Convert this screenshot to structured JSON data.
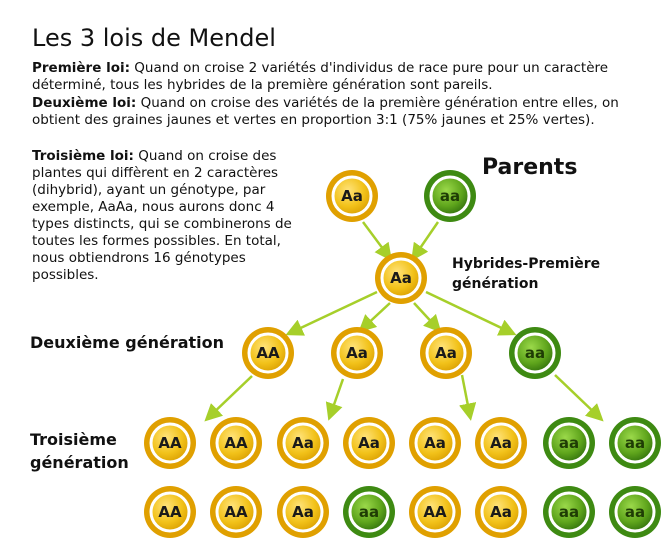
{
  "title": "Les 3 lois de Mendel",
  "laws": [
    {
      "heading": "Première loi:",
      "text": " Quand on croise 2 variétés d'individus de race pure pour un caractère déterminé, tous les hybrides de la première génération sont pareils."
    },
    {
      "heading": "Deuxième loi:",
      "text": " Quand on croise des variétés de la première génération entre elles, on obtient des graines jaunes et vertes en proportion 3:1 (75% jaunes et 25% vertes)."
    },
    {
      "heading": "Troisième loi:",
      "text": " Quand on croise des plantes qui diffèrent en 2 caractères (dihybrid), ayant un génotype, par exemple, AaAa, nous aurons donc 4 types distincts, qui se combinerons de toutes les formes possibles. En total, nous obtiendrons 16 génotypes possibles."
    }
  ],
  "labels": {
    "parents": "Parents",
    "hybrides_line1": "Hybrides-Première",
    "hybrides_line2": "génération",
    "gen2": "Deuxième génération",
    "gen3_line1": "Troisième",
    "gen3_line2": "génération"
  },
  "colors": {
    "yellow_ring": "#E0A000",
    "yellow_fill": "#F2C21A",
    "green_ring": "#3E8A12",
    "green_fill": "#5FA51C",
    "arrow": "#A6CF2A"
  },
  "balls": {
    "parents": [
      {
        "genotype": "Aa",
        "color": "yellow"
      },
      {
        "genotype": "aa",
        "color": "green"
      }
    ],
    "gen1": [
      {
        "genotype": "Aa",
        "color": "yellow"
      }
    ],
    "gen2": [
      {
        "genotype": "AA",
        "color": "yellow"
      },
      {
        "genotype": "Aa",
        "color": "yellow"
      },
      {
        "genotype": "Aa",
        "color": "yellow"
      },
      {
        "genotype": "aa",
        "color": "green"
      }
    ],
    "gen3_row1": [
      {
        "genotype": "AA",
        "color": "yellow"
      },
      {
        "genotype": "AA",
        "color": "yellow"
      },
      {
        "genotype": "Aa",
        "color": "yellow"
      },
      {
        "genotype": "Aa",
        "color": "yellow"
      },
      {
        "genotype": "Aa",
        "color": "yellow"
      },
      {
        "genotype": "Aa",
        "color": "yellow"
      },
      {
        "genotype": "aa",
        "color": "green"
      },
      {
        "genotype": "aa",
        "color": "green"
      }
    ],
    "gen3_row2": [
      {
        "genotype": "AA",
        "color": "yellow"
      },
      {
        "genotype": "AA",
        "color": "yellow"
      },
      {
        "genotype": "Aa",
        "color": "yellow"
      },
      {
        "genotype": "aa",
        "color": "green"
      },
      {
        "genotype": "AA",
        "color": "yellow"
      },
      {
        "genotype": "Aa",
        "color": "yellow"
      },
      {
        "genotype": "aa",
        "color": "green"
      },
      {
        "genotype": "aa",
        "color": "green"
      }
    ]
  }
}
